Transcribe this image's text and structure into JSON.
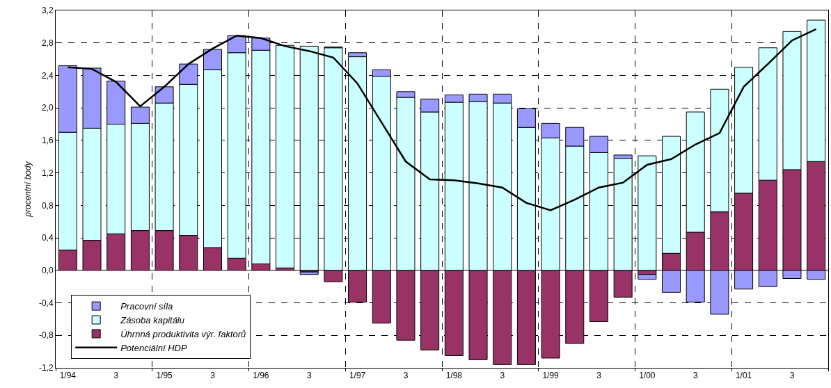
{
  "chart_data": {
    "type": "bar",
    "stacked": true,
    "ylabel": "procentní body",
    "categories": [
      "1/94",
      null,
      "3",
      null,
      "1/95",
      null,
      "3",
      null,
      "1/96",
      null,
      "3",
      null,
      "1/97",
      null,
      "3",
      null,
      "1/98",
      null,
      "3",
      null,
      "1/99",
      null,
      "3",
      null,
      "1/00",
      null,
      "3",
      null,
      "1/01",
      null,
      "3",
      null
    ],
    "series": [
      {
        "name": "Úhrnná produktivita výr. faktorů",
        "color": "#993366",
        "values": [
          0.25,
          0.37,
          0.45,
          0.49,
          0.49,
          0.43,
          0.28,
          0.15,
          0.08,
          0.03,
          -0.02,
          -0.14,
          -0.39,
          -0.65,
          -0.86,
          -0.98,
          -1.05,
          -1.1,
          -1.16,
          -1.16,
          -1.08,
          -0.9,
          -0.63,
          -0.33,
          -0.05,
          0.21,
          0.47,
          0.72,
          0.95,
          1.11,
          1.24,
          1.34
        ]
      },
      {
        "name": "Zásoba kapitálu",
        "color": "#ccffff",
        "values": [
          1.45,
          1.38,
          1.35,
          1.32,
          1.57,
          1.86,
          2.19,
          2.53,
          2.63,
          2.74,
          2.76,
          2.74,
          2.63,
          2.39,
          2.13,
          1.95,
          2.07,
          2.08,
          2.06,
          1.76,
          1.63,
          1.53,
          1.45,
          1.38,
          1.41,
          1.44,
          1.48,
          1.51,
          1.55,
          1.63,
          1.7,
          1.74
        ]
      },
      {
        "name": "Pracovní síla",
        "color": "#9999ff",
        "values": [
          0.82,
          0.74,
          0.53,
          0.2,
          0.2,
          0.25,
          0.25,
          0.21,
          0.15,
          null,
          -0.03,
          0.01,
          0.05,
          0.08,
          0.07,
          0.16,
          0.09,
          0.09,
          0.11,
          0.23,
          0.18,
          0.23,
          0.2,
          0.04,
          -0.06,
          -0.27,
          -0.39,
          -0.54,
          -0.23,
          -0.2,
          -0.1,
          -0.11
        ]
      },
      {
        "name": "Potenciální HDP",
        "type": "line",
        "color": "#000000",
        "values": [
          2.5,
          2.48,
          2.32,
          2.02,
          2.26,
          2.54,
          2.73,
          2.89,
          2.86,
          2.76,
          2.7,
          2.62,
          2.3,
          1.82,
          1.34,
          1.12,
          1.11,
          1.07,
          1.02,
          0.83,
          0.74,
          0.87,
          1.02,
          1.08,
          1.3,
          1.37,
          1.55,
          1.69,
          2.26,
          2.54,
          2.83,
          2.97
        ]
      }
    ],
    "ylim": [
      -1.2,
      3.2
    ],
    "yticks": [
      {
        "value": -1.2,
        "label": "-1,2"
      },
      {
        "value": -0.8,
        "label": "-0,8"
      },
      {
        "value": -0.4,
        "label": "-0,4"
      },
      {
        "value": 0,
        "label": "0,0"
      },
      {
        "value": 0.4,
        "label": "0,4"
      },
      {
        "value": 0.8,
        "label": "0,8"
      },
      {
        "value": 1.2,
        "label": "1,2"
      },
      {
        "value": 1.6,
        "label": "1,6"
      },
      {
        "value": 2.0,
        "label": "2,0"
      },
      {
        "value": 2.4,
        "label": "2,4"
      },
      {
        "value": 2.8,
        "label": "2,8"
      },
      {
        "value": 3.2,
        "label": "3,2"
      }
    ],
    "grid": true,
    "legend": "bottom left",
    "line_style": "solid",
    "marker": "none"
  }
}
